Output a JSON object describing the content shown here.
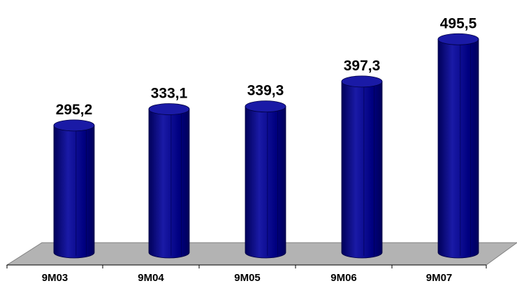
{
  "chart_data": {
    "type": "bar",
    "categories": [
      "9M03",
      "9M04",
      "9M05",
      "9M06",
      "9M07"
    ],
    "values": [
      295.2,
      333.1,
      339.3,
      397.3,
      495.5
    ],
    "value_labels": [
      "295,2",
      "333,1",
      "339,3",
      "397,3",
      "495,5"
    ],
    "title": "",
    "xlabel": "",
    "ylabel": "",
    "ylim": [
      0,
      500
    ],
    "grid": false,
    "legend": "none",
    "style": "3d-cylinder",
    "colors": {
      "bar": "#000080",
      "bar_light": "#1a1aa6",
      "bar_dark": "#00005a",
      "floor": "#b3b3b3",
      "floor_edge": "#808080"
    }
  }
}
